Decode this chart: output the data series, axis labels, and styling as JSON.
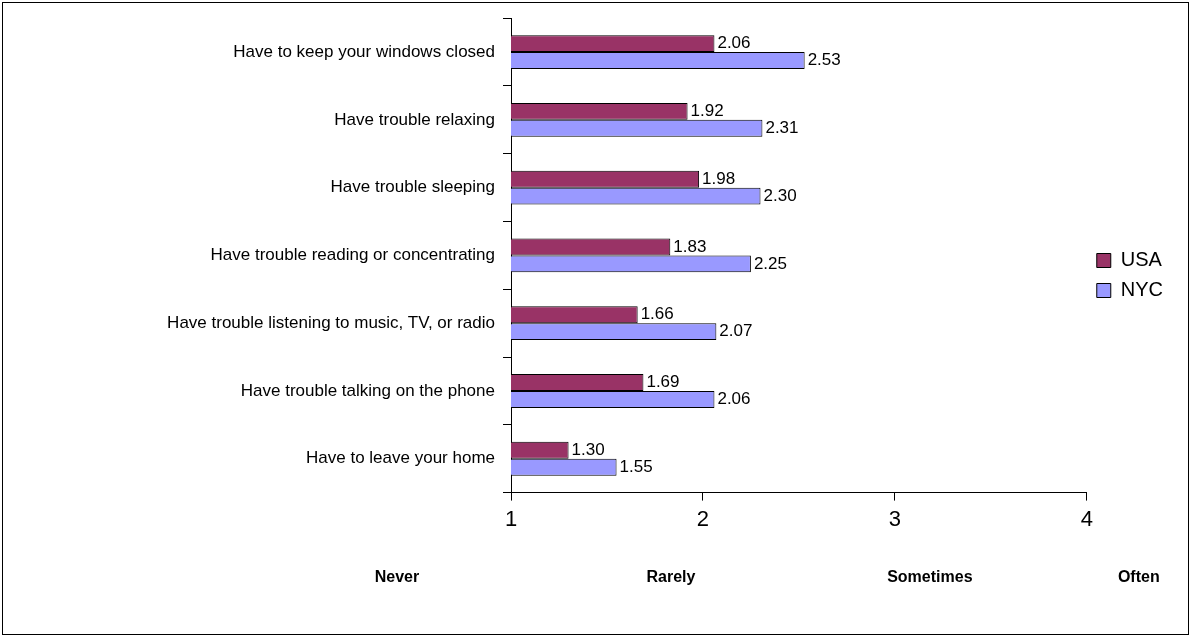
{
  "chart_data": {
    "type": "bar",
    "orientation": "horizontal",
    "categories": [
      "Have to keep your windows closed",
      "Have trouble relaxing",
      "Have trouble sleeping",
      "Have trouble reading or concentrating",
      "Have trouble listening to music, TV, or radio",
      "Have trouble talking on the phone",
      "Have to leave your home"
    ],
    "series": [
      {
        "name": "USA",
        "color": "#993366",
        "values": [
          2.06,
          1.92,
          1.98,
          1.83,
          1.66,
          1.69,
          1.3
        ],
        "value_labels": [
          "2.06",
          "1.92",
          "1.98",
          "1.83",
          "1.66",
          "1.69",
          "1.30"
        ]
      },
      {
        "name": "NYC",
        "color": "#9999ff",
        "values": [
          2.53,
          2.31,
          2.3,
          2.25,
          2.07,
          2.06,
          1.55
        ],
        "value_labels": [
          "2.53",
          "2.31",
          "2.30",
          "2.25",
          "2.07",
          "2.06",
          "1.55"
        ]
      }
    ],
    "xlim": [
      1,
      4
    ],
    "xticks": [
      1,
      2,
      3,
      4
    ],
    "grid": false,
    "legend": "right",
    "annotations": [
      "Never",
      "Rarely",
      "Sometimes",
      "Often"
    ]
  }
}
